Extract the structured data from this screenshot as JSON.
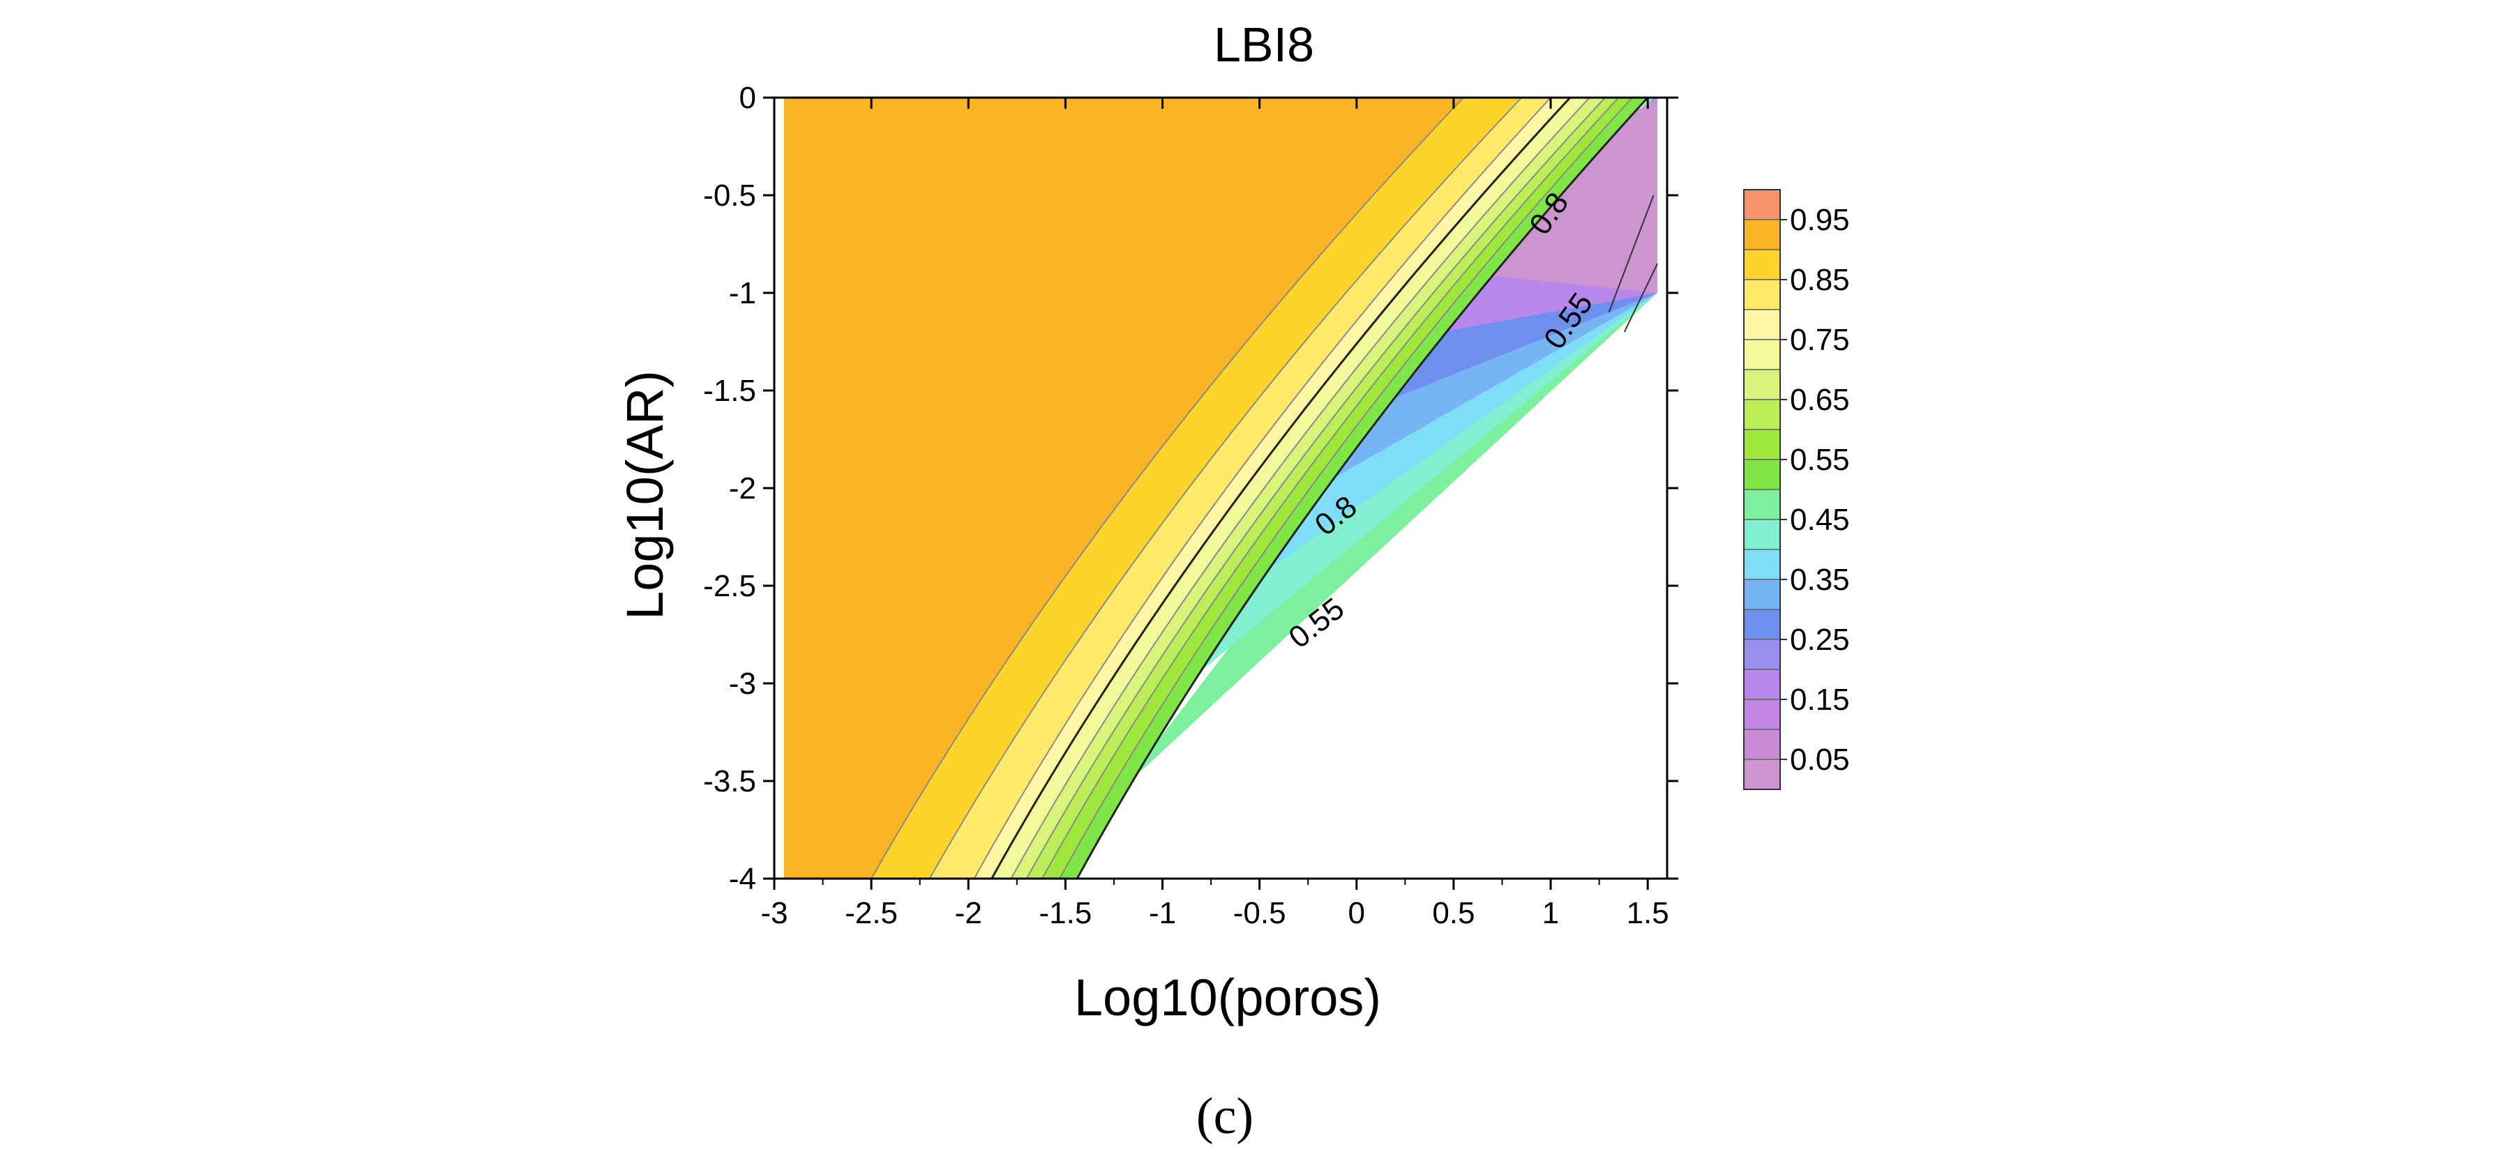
{
  "chart_data": {
    "type": "contour",
    "title": "LBI8",
    "xlabel": "Log10(poros)",
    "ylabel": "Log10(AR)",
    "xlim": [
      -3,
      1.6
    ],
    "ylim": [
      -4,
      0
    ],
    "x_ticks": [
      -3,
      -2.5,
      -2,
      -1.5,
      -1,
      -0.5,
      0,
      0.5,
      1,
      1.5
    ],
    "x_tick_labels": [
      "-3",
      "-2.5",
      "-2",
      "-1.5",
      "-1",
      "-0.5",
      "0",
      "0.5",
      "1",
      "1.5"
    ],
    "y_ticks": [
      0,
      -0.5,
      -1,
      -1.5,
      -2,
      -2.5,
      -3,
      -3.5,
      -4
    ],
    "y_tick_labels": [
      "0",
      "-0.5",
      "-1",
      "-1.5",
      "-2",
      "-2.5",
      "-3",
      "-3.5",
      "-4"
    ],
    "contour_levels": [
      {
        "level": 0.95,
        "top_x": 0.55,
        "bottom_x": -2.5,
        "color": "#FBB424"
      },
      {
        "level": 0.9,
        "top_x": 0.85,
        "bottom_x": -2.2,
        "color": "#FDD52A"
      },
      {
        "level": 0.85,
        "top_x": 1.0,
        "bottom_x": -1.97,
        "color": "#FEEA68"
      },
      {
        "level": 0.8,
        "top_x": 1.1,
        "bottom_x": -1.88,
        "color": "#FFF6A6"
      },
      {
        "level": 0.75,
        "top_x": 1.2,
        "bottom_x": -1.78,
        "color": "#F2F99A"
      },
      {
        "level": 0.7,
        "top_x": 1.28,
        "bottom_x": -1.7,
        "color": "#D9F47A"
      },
      {
        "level": 0.65,
        "top_x": 1.35,
        "bottom_x": -1.62,
        "color": "#BCEE58"
      },
      {
        "level": 0.6,
        "top_x": 1.42,
        "bottom_x": -1.53,
        "color": "#9DE83A"
      },
      {
        "level": 0.55,
        "top_x": 1.5,
        "bottom_x": -1.44,
        "color": "#7FE646"
      }
    ],
    "contour_labels": [
      {
        "text": "0.8",
        "x": 1.0,
        "y": -0.6,
        "angle": -55
      },
      {
        "text": "0.55",
        "x": 1.1,
        "y": -1.15,
        "angle": -55
      },
      {
        "text": "0.8",
        "x": -0.1,
        "y": -2.15,
        "angle": -38
      },
      {
        "text": "0.55",
        "x": -0.2,
        "y": -2.7,
        "angle": -38
      }
    ],
    "colorbar": {
      "levels": [
        1.0,
        0.95,
        0.9,
        0.85,
        0.8,
        0.75,
        0.7,
        0.65,
        0.6,
        0.55,
        0.5,
        0.45,
        0.4,
        0.35,
        0.3,
        0.25,
        0.2,
        0.15,
        0.1,
        0.05
      ],
      "colors": [
        "#F7936C",
        "#FBB424",
        "#FDD52A",
        "#FEEA68",
        "#FFF6A6",
        "#F2F99A",
        "#D9F47A",
        "#BCEE58",
        "#9DE83A",
        "#7FE646",
        "#7DF09E",
        "#80F0D0",
        "#7FDDF8",
        "#76B4F4",
        "#6E8FEE",
        "#9A8EEE",
        "#B887EE",
        "#C486E4",
        "#C98AD6",
        "#CC95D0"
      ],
      "tick_labels": [
        "0.95",
        "0.85",
        "0.75",
        "0.65",
        "0.55",
        "0.45",
        "0.35",
        "0.25",
        "0.15",
        "0.05"
      ]
    },
    "low_region_colors": [
      "#7DF09E",
      "#80F0D0",
      "#7FDDF8",
      "#76B4F4",
      "#6E8FEE",
      "#B887EE",
      "#CC95D0"
    ]
  },
  "caption": "(c)"
}
